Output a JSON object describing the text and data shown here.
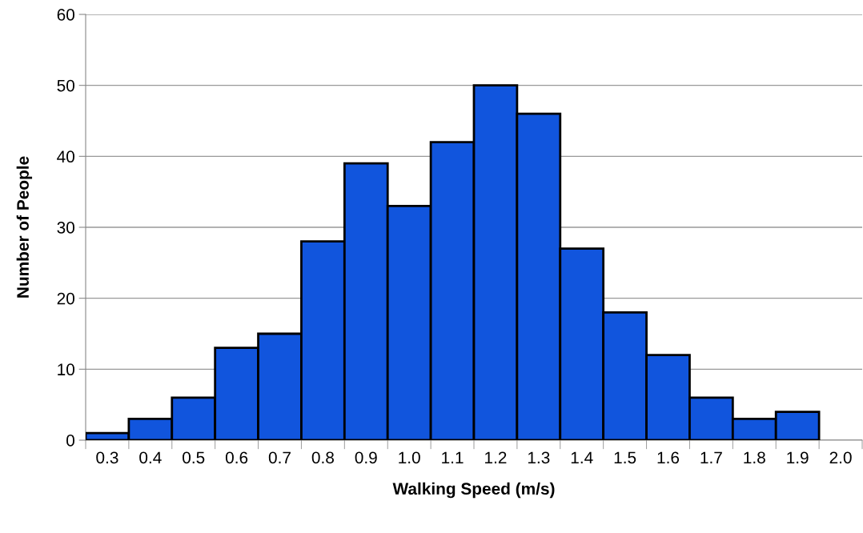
{
  "chart_data": {
    "type": "bar",
    "xlabel": "Walking Speed (m/s)",
    "ylabel": "Number of People",
    "categories": [
      "0.3",
      "0.4",
      "0.5",
      "0.6",
      "0.7",
      "0.8",
      "0.9",
      "1.0",
      "1.1",
      "1.2",
      "1.3",
      "1.4",
      "1.5",
      "1.6",
      "1.7",
      "1.8",
      "1.9",
      "2.0"
    ],
    "values": [
      1,
      3,
      6,
      13,
      15,
      28,
      39,
      33,
      42,
      50,
      46,
      27,
      18,
      12,
      6,
      3,
      4,
      null
    ],
    "color": "#1155dd",
    "ylim": [
      0,
      60
    ],
    "yticks": [
      0,
      10,
      20,
      30,
      40,
      50,
      60
    ],
    "grid": "y",
    "legend": false
  }
}
